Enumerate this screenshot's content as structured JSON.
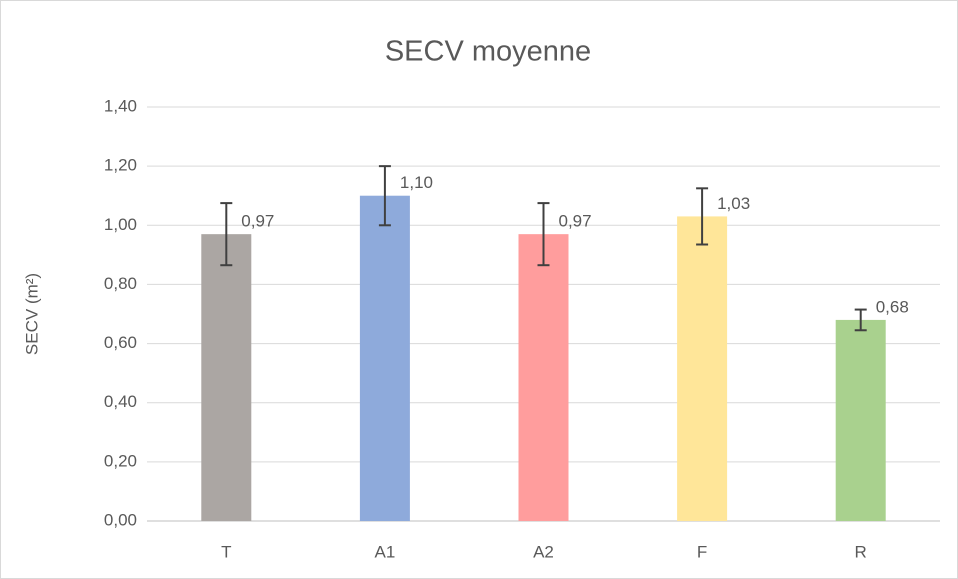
{
  "chart_data": {
    "type": "bar",
    "title": "SECV moyenne",
    "y_label": "SECV (m²)",
    "categories": [
      "T",
      "A1",
      "A2",
      "F",
      "R"
    ],
    "values": [
      0.97,
      1.1,
      0.97,
      1.03,
      0.68
    ],
    "value_labels": [
      "0,97",
      "1,10",
      "0,97",
      "1,03",
      "0,68"
    ],
    "errors": [
      0.105,
      0.1,
      0.105,
      0.095,
      0.035
    ],
    "colors": [
      "#aba6a3",
      "#8eaadb",
      "#ff9d9d",
      "#ffe699",
      "#a9d18e"
    ],
    "ylim": [
      0,
      1.4
    ],
    "yticks": [
      {
        "value": 0,
        "label": "0,00"
      },
      {
        "value": 0.2,
        "label": "0,20"
      },
      {
        "value": 0.4,
        "label": "0,40"
      },
      {
        "value": 0.6,
        "label": "0,60"
      },
      {
        "value": 0.8,
        "label": "0,80"
      },
      {
        "value": 1,
        "label": "1,00"
      },
      {
        "value": 1.2,
        "label": "1,20"
      },
      {
        "value": 1.4,
        "label": "1,40"
      }
    ],
    "grid": true
  }
}
